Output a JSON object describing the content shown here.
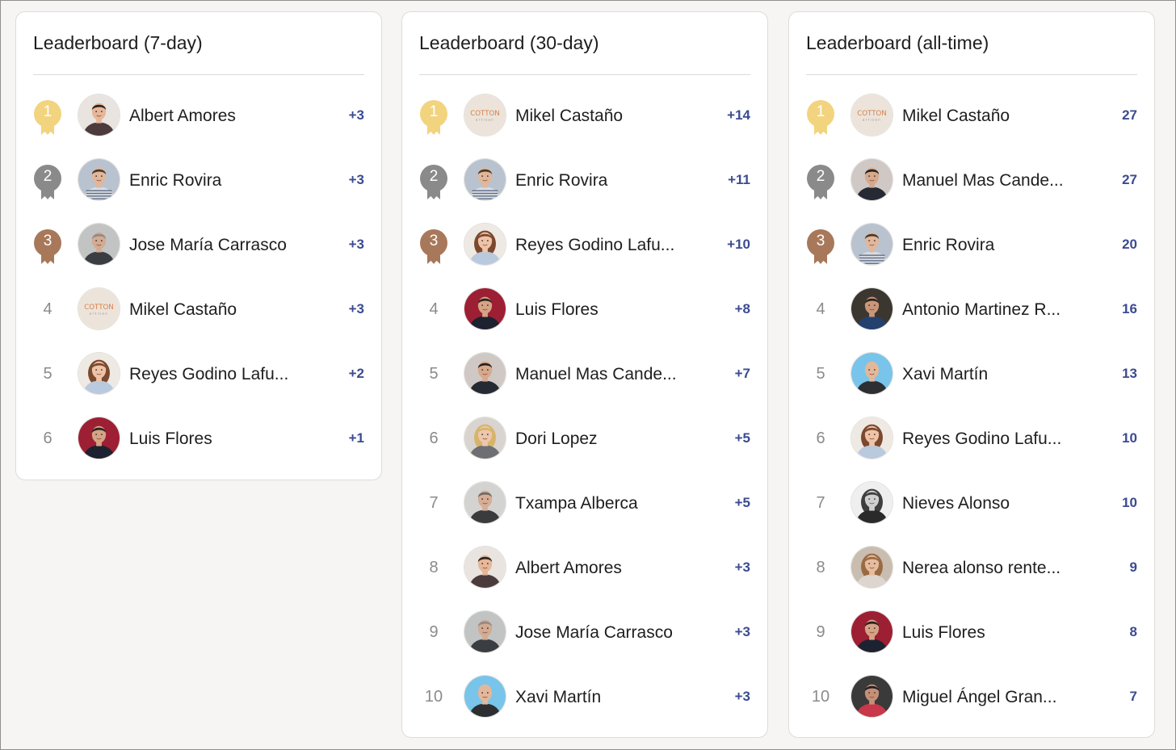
{
  "colors": {
    "gold": "#f2d37e",
    "silver": "#8a8a8a",
    "bronze": "#a8785a",
    "score": "#3b4b91"
  },
  "leaderboards": [
    {
      "title": "Leaderboard (7-day)",
      "rows": [
        {
          "rank": "1",
          "name": "Albert Amores",
          "score": "+3",
          "avatar": "albert-amores-photo"
        },
        {
          "rank": "2",
          "name": "Enric Rovira",
          "score": "+3",
          "avatar": "enric-rovira-photo"
        },
        {
          "rank": "3",
          "name": "Jose María Carrasco",
          "score": "+3",
          "avatar": "jose-maria-carrasco-photo"
        },
        {
          "rank": "4",
          "name": "Mikel Castaño",
          "score": "+3",
          "avatar": "cotton-artisan-logo"
        },
        {
          "rank": "5",
          "name": "Reyes Godino Lafu...",
          "score": "+2",
          "avatar": "reyes-godino-photo"
        },
        {
          "rank": "6",
          "name": "Luis Flores",
          "score": "+1",
          "avatar": "luis-flores-photo"
        }
      ]
    },
    {
      "title": "Leaderboard (30-day)",
      "rows": [
        {
          "rank": "1",
          "name": "Mikel Castaño",
          "score": "+14",
          "avatar": "cotton-artisan-logo"
        },
        {
          "rank": "2",
          "name": "Enric Rovira",
          "score": "+11",
          "avatar": "enric-rovira-photo"
        },
        {
          "rank": "3",
          "name": "Reyes Godino Lafu...",
          "score": "+10",
          "avatar": "reyes-godino-photo"
        },
        {
          "rank": "4",
          "name": "Luis Flores",
          "score": "+8",
          "avatar": "luis-flores-photo"
        },
        {
          "rank": "5",
          "name": "Manuel Mas Cande...",
          "score": "+7",
          "avatar": "manuel-mas-photo"
        },
        {
          "rank": "6",
          "name": "Dori Lopez",
          "score": "+5",
          "avatar": "dori-lopez-photo"
        },
        {
          "rank": "7",
          "name": "Txampa Alberca",
          "score": "+5",
          "avatar": "txampa-alberca-photo"
        },
        {
          "rank": "8",
          "name": "Albert Amores",
          "score": "+3",
          "avatar": "albert-amores-photo"
        },
        {
          "rank": "9",
          "name": "Jose María Carrasco",
          "score": "+3",
          "avatar": "jose-maria-carrasco-photo"
        },
        {
          "rank": "10",
          "name": "Xavi Martín",
          "score": "+3",
          "avatar": "xavi-martin-photo"
        }
      ]
    },
    {
      "title": "Leaderboard (all-time)",
      "rows": [
        {
          "rank": "1",
          "name": "Mikel Castaño",
          "score": "27",
          "avatar": "cotton-artisan-logo"
        },
        {
          "rank": "2",
          "name": "Manuel Mas Cande...",
          "score": "27",
          "avatar": "manuel-mas-photo"
        },
        {
          "rank": "3",
          "name": "Enric Rovira",
          "score": "20",
          "avatar": "enric-rovira-photo"
        },
        {
          "rank": "4",
          "name": "Antonio Martinez R...",
          "score": "16",
          "avatar": "antonio-martinez-photo"
        },
        {
          "rank": "5",
          "name": "Xavi Martín",
          "score": "13",
          "avatar": "xavi-martin-photo"
        },
        {
          "rank": "6",
          "name": "Reyes Godino Lafu...",
          "score": "10",
          "avatar": "reyes-godino-photo"
        },
        {
          "rank": "7",
          "name": "Nieves Alonso",
          "score": "10",
          "avatar": "nieves-alonso-photo"
        },
        {
          "rank": "8",
          "name": "Nerea alonso rente...",
          "score": "9",
          "avatar": "nerea-alonso-photo"
        },
        {
          "rank": "9",
          "name": "Luis Flores",
          "score": "8",
          "avatar": "luis-flores-photo"
        },
        {
          "rank": "10",
          "name": "Miguel Ángel Gran...",
          "score": "7",
          "avatar": "miguel-angel-photo"
        }
      ]
    }
  ]
}
